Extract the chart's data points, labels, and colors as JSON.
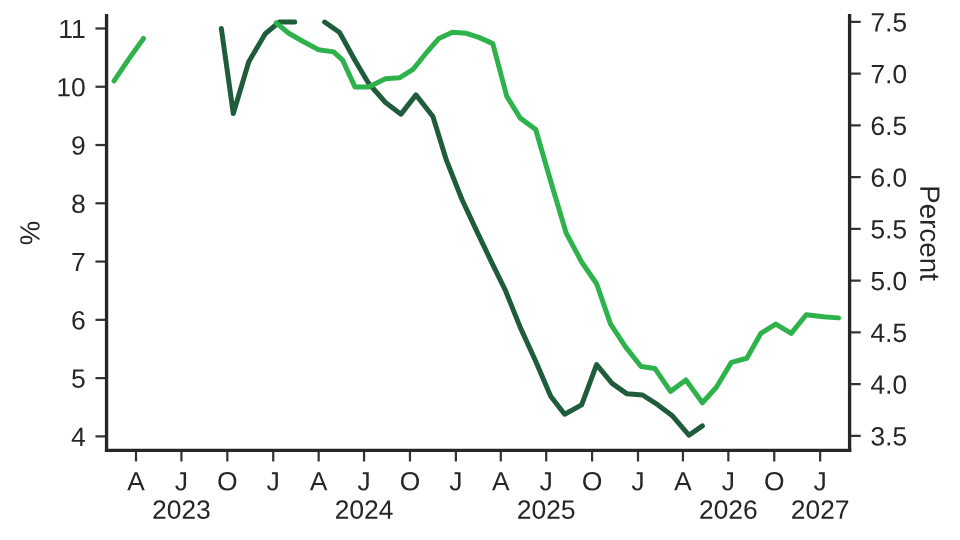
{
  "chart_data": {
    "type": "line",
    "ylabel": "%",
    "y2label": "Percent",
    "xlim": [
      "2023-02-01",
      "2027-03-01"
    ],
    "ylim": [
      3.76,
      11.22
    ],
    "yticks": [
      4,
      5,
      6,
      7,
      8,
      9,
      10,
      11
    ],
    "y2lim": [
      3.36,
      7.56
    ],
    "y2ticks": [
      {
        "value": 3.5,
        "label": "3.5"
      },
      {
        "value": 4.0,
        "label": "4.0"
      },
      {
        "value": 4.5,
        "label": "4.5"
      },
      {
        "value": 5.0,
        "label": "5.0"
      },
      {
        "value": 5.5,
        "label": "5.5"
      },
      {
        "value": 6.0,
        "label": "6.0"
      },
      {
        "value": 6.5,
        "label": "6.5"
      },
      {
        "value": 7.0,
        "label": "7.0"
      },
      {
        "value": 7.5,
        "label": "7.5"
      }
    ],
    "xticks": [
      {
        "value": "2023-04-01",
        "label": "A"
      },
      {
        "value": "2023-07-01",
        "label": "J\n2023"
      },
      {
        "value": "2023-10-01",
        "label": "O"
      },
      {
        "value": "2024-01-01",
        "label": "J"
      },
      {
        "value": "2024-04-01",
        "label": "A"
      },
      {
        "value": "2024-07-01",
        "label": "J\n2024"
      },
      {
        "value": "2024-10-01",
        "label": "O"
      },
      {
        "value": "2025-01-01",
        "label": "J"
      },
      {
        "value": "2025-04-01",
        "label": "A"
      },
      {
        "value": "2025-07-01",
        "label": "J\n2025"
      },
      {
        "value": "2025-10-01",
        "label": "O"
      },
      {
        "value": "2026-01-01",
        "label": "J"
      },
      {
        "value": "2026-04-01",
        "label": "A"
      },
      {
        "value": "2026-07-01",
        "label": "J\n2026"
      },
      {
        "value": "2026-10-01",
        "label": "O"
      },
      {
        "value": "2027-01-01",
        "label": "J\n2027"
      }
    ],
    "grid": false,
    "legend": false,
    "marker": "none",
    "line_style": "solid",
    "series": [
      {
        "color": "#1f5c3b",
        "x": [
          "2023-09-19",
          "2023-10-13",
          "2023-11-13",
          "2023-12-16",
          "2024-01-13",
          "2024-02-13",
          "2024-03-15",
          "2024-04-13",
          "2024-05-13",
          "2024-06-13",
          "2024-07-10",
          "2024-08-13",
          "2024-09-13",
          "2024-10-13",
          "2024-11-16",
          "2024-12-13",
          "2025-01-13",
          "2025-02-13",
          "2025-03-13",
          "2025-04-10",
          "2025-05-10",
          "2025-06-10",
          "2025-07-10",
          "2025-08-07",
          "2025-09-10",
          "2025-10-10",
          "2025-11-10",
          "2025-12-10",
          "2026-01-10",
          "2026-02-10",
          "2026-03-10",
          "2026-04-13",
          "2026-05-10"
        ],
        "values": [
          11.0,
          9.54,
          10.43,
          10.91,
          11.11,
          11.11,
          null,
          11.11,
          10.93,
          10.45,
          10.06,
          9.73,
          9.53,
          9.86,
          9.49,
          8.74,
          8.07,
          7.5,
          7.0,
          6.51,
          5.87,
          5.29,
          4.69,
          4.38,
          4.54,
          5.23,
          4.91,
          4.73,
          4.71,
          4.54,
          4.36,
          4.02,
          4.18
        ]
      },
      {
        "color": "#2eb24b",
        "axis": "y2",
        "x": [
          "2023-02-16",
          "2023-03-16",
          "2023-04-16",
          "2023-09-01",
          "2024-01-07",
          "2024-02-01",
          "2024-03-01",
          "2024-04-01",
          "2024-05-01",
          "2024-05-19",
          "2024-06-13",
          "2024-07-10",
          "2024-08-13",
          "2024-09-10",
          "2024-10-07",
          "2024-11-01",
          "2024-11-28",
          "2024-12-25",
          "2025-01-22",
          "2025-02-16",
          "2025-03-16",
          "2025-04-13",
          "2025-05-10",
          "2025-06-10",
          "2025-07-10",
          "2025-08-10",
          "2025-09-10",
          "2025-10-10",
          "2025-11-07",
          "2025-12-07",
          "2026-01-07",
          "2026-02-04",
          "2026-03-07",
          "2026-04-07",
          "2026-05-10",
          "2026-06-07",
          "2026-07-07",
          "2026-08-07",
          "2026-09-04",
          "2026-10-04",
          "2026-11-04",
          "2026-12-04",
          "2027-01-07",
          "2027-02-07"
        ],
        "values": [
          6.93,
          7.13,
          7.34,
          null,
          7.49,
          7.39,
          7.31,
          7.23,
          7.21,
          7.13,
          6.87,
          6.87,
          6.95,
          6.96,
          7.04,
          7.19,
          7.34,
          7.4,
          7.39,
          7.35,
          7.29,
          6.78,
          6.57,
          6.46,
          5.96,
          5.46,
          5.18,
          4.97,
          4.58,
          4.36,
          4.17,
          4.15,
          3.93,
          4.04,
          3.82,
          3.97,
          4.21,
          4.25,
          4.49,
          4.58,
          4.49,
          4.67,
          4.65,
          4.64
        ]
      }
    ]
  }
}
